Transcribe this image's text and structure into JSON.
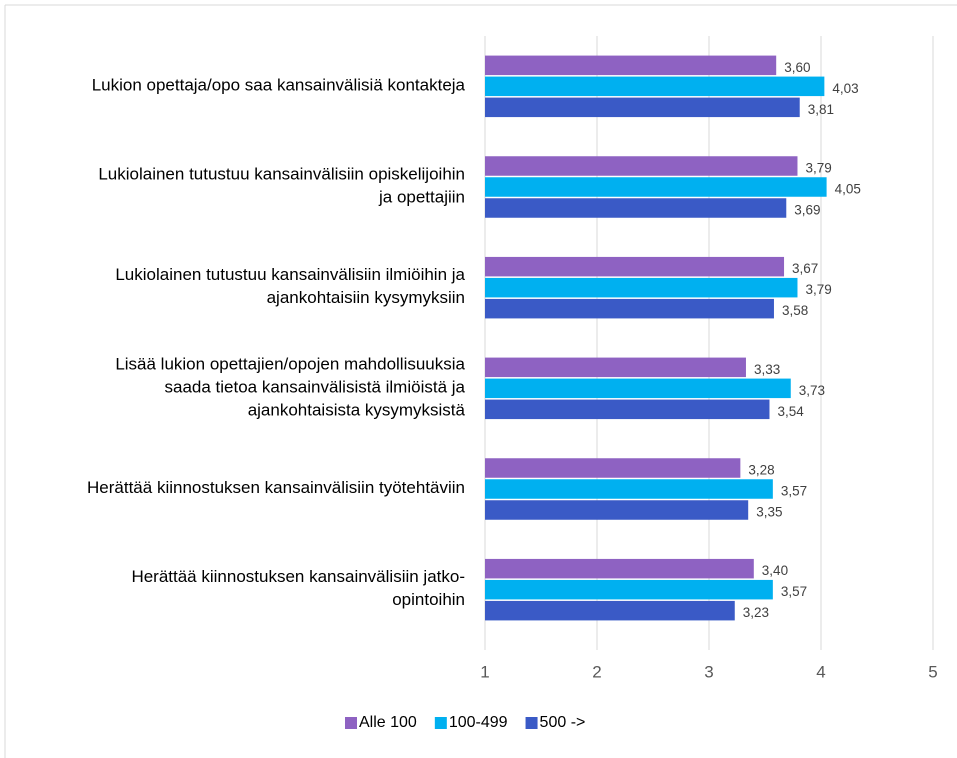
{
  "chart_data": {
    "type": "bar",
    "orientation": "horizontal",
    "categories": [
      "Lukion opettaja/opo saa kansainvälisiä kontakteja",
      "Lukiolainen tutustuu kansainvälisiin opiskelijoihin\nja opettajiin",
      "Lukiolainen tutustuu kansainvälisiin ilmiöihin ja\najankohtaisiin kysymyksiin",
      "Lisää lukion opettajien/opojen mahdollisuuksia\nsaada tietoa kansainvälisistä ilmiöistä ja\najankohtaisista kysymyksistä",
      "Herättää kiinnostuksen kansainvälisiin työtehtäviin",
      "Herättää kiinnostuksen kansainvälisiin jatko-\nopintoihin"
    ],
    "series": [
      {
        "name": "Alle 100",
        "color": "#8e62c2",
        "values": [
          3.6,
          3.79,
          3.67,
          3.33,
          3.28,
          3.4
        ],
        "value_labels": [
          "3,60",
          "3,79",
          "3,67",
          "3,33",
          "3,28",
          "3,40"
        ]
      },
      {
        "name": "100-499",
        "color": "#00b0f0",
        "values": [
          4.03,
          4.05,
          3.79,
          3.73,
          3.57,
          3.57
        ],
        "value_labels": [
          "4,03",
          "4,05",
          "3,79",
          "3,73",
          "3,57",
          "3,57"
        ]
      },
      {
        "name": "500 ->",
        "color": "#3a5ac6",
        "values": [
          3.81,
          3.69,
          3.58,
          3.54,
          3.35,
          3.23
        ],
        "value_labels": [
          "3,81",
          "3,69",
          "3,58",
          "3,54",
          "3,35",
          "3,23"
        ]
      }
    ],
    "xlim": [
      1,
      5
    ],
    "xticks": [
      1,
      2,
      3,
      4,
      5
    ],
    "grid": true,
    "legend": "bottom"
  }
}
